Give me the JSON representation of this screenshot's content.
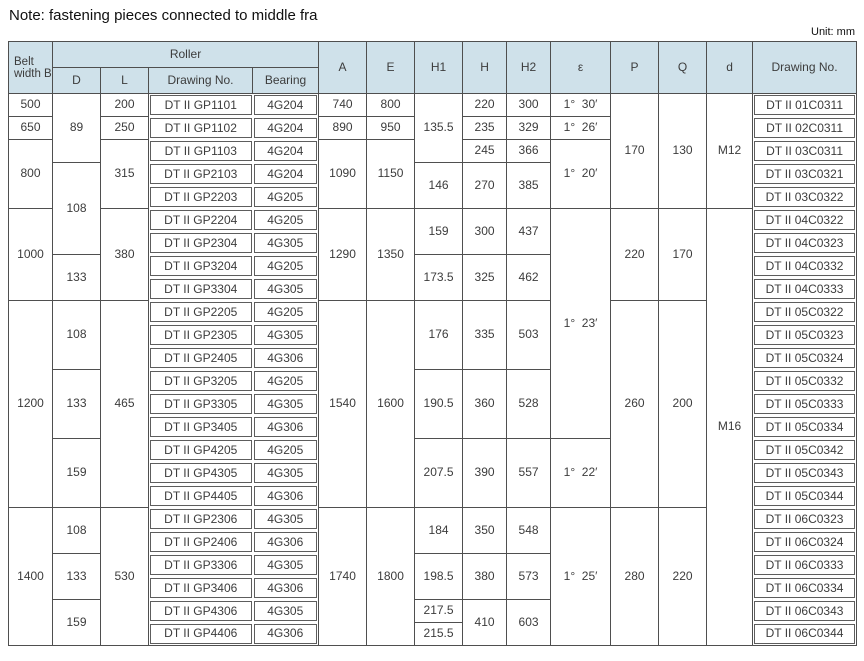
{
  "note": "Note: fastening pieces connected to middle fra",
  "unit": "Unit: mm",
  "colors": {
    "header_bg": "#cfe1ea",
    "border": "#4f4f4f",
    "box_border": "#5d5d5d",
    "text": "#3c3c3c"
  },
  "table": {
    "header": {
      "belt": "Belt width B",
      "roller": "Roller",
      "roller_sub": [
        "D",
        "L",
        "Drawing No.",
        "Bearing"
      ],
      "spanning": [
        "A",
        "E",
        "H1",
        "H",
        "H2",
        "ε",
        "P",
        "Q",
        "d",
        "Drawing No."
      ]
    },
    "rows": [
      [
        {
          "t": "500"
        },
        {
          "t": "89",
          "rs": 3
        },
        {
          "t": "200"
        },
        {
          "t": "DT II GP1101",
          "b": 1
        },
        {
          "t": "4G204",
          "b": 1
        },
        {
          "t": "740"
        },
        {
          "t": "800"
        },
        {
          "t": "135.5",
          "rs": 3
        },
        {
          "t": "220"
        },
        {
          "t": "300"
        },
        {
          "t": "1°  30′"
        },
        {
          "t": "170",
          "rs": 5
        },
        {
          "t": "130",
          "rs": 5
        },
        {
          "t": "M12",
          "rs": 5
        },
        {
          "t": "DT II 01C0311",
          "b": 1
        }
      ],
      [
        {
          "t": "650"
        },
        {
          "t": "250"
        },
        {
          "t": "DT II GP1102",
          "b": 1
        },
        {
          "t": "4G204",
          "b": 1
        },
        {
          "t": "890"
        },
        {
          "t": "950"
        },
        {
          "t": "235"
        },
        {
          "t": "329"
        },
        {
          "t": "1°  26′"
        },
        {
          "t": "DT II 02C0311",
          "b": 1
        }
      ],
      [
        {
          "t": "800",
          "rs": 3
        },
        {
          "t": "315",
          "rs": 3
        },
        {
          "t": "DT II GP1103",
          "b": 1
        },
        {
          "t": "4G204",
          "b": 1
        },
        {
          "t": "1090",
          "rs": 3
        },
        {
          "t": "1150",
          "rs": 3
        },
        {
          "t": "245"
        },
        {
          "t": "366"
        },
        {
          "t": "1°  20′",
          "rs": 3
        },
        {
          "t": "DT II 03C0311",
          "b": 1
        }
      ],
      [
        {
          "t": "108",
          "rs": 4
        },
        {
          "t": "DT II GP2103",
          "b": 1
        },
        {
          "t": "4G204",
          "b": 1
        },
        {
          "t": "146",
          "rs": 2
        },
        {
          "t": "270",
          "rs": 2
        },
        {
          "t": "385",
          "rs": 2
        },
        {
          "t": "DT II 03C0321",
          "b": 1
        }
      ],
      [
        {
          "t": "DT II GP2203",
          "b": 1
        },
        {
          "t": "4G205",
          "b": 1
        },
        {
          "t": "DT II 03C0322",
          "b": 1
        }
      ],
      [
        {
          "t": "1000",
          "rs": 4
        },
        {
          "t": "380",
          "rs": 4
        },
        {
          "t": "DT II GP2204",
          "b": 1
        },
        {
          "t": "4G205",
          "b": 1
        },
        {
          "t": "1290",
          "rs": 4
        },
        {
          "t": "1350",
          "rs": 4
        },
        {
          "t": "159",
          "rs": 2
        },
        {
          "t": "300",
          "rs": 2
        },
        {
          "t": "437",
          "rs": 2
        },
        {
          "t": "1°  23′",
          "rs": 10
        },
        {
          "t": "220",
          "rs": 4
        },
        {
          "t": "170",
          "rs": 4
        },
        {
          "t": "M16",
          "rs": 19
        },
        {
          "t": "DT II 04C0322",
          "b": 1
        }
      ],
      [
        {
          "t": "DT II GP2304",
          "b": 1
        },
        {
          "t": "4G305",
          "b": 1
        },
        {
          "t": "DT II 04C0323",
          "b": 1
        }
      ],
      [
        {
          "t": "133",
          "rs": 2
        },
        {
          "t": "DT II GP3204",
          "b": 1
        },
        {
          "t": "4G205",
          "b": 1
        },
        {
          "t": "173.5",
          "rs": 2
        },
        {
          "t": "325",
          "rs": 2
        },
        {
          "t": "462",
          "rs": 2
        },
        {
          "t": "DT II 04C0332",
          "b": 1
        }
      ],
      [
        {
          "t": "DT II GP3304",
          "b": 1
        },
        {
          "t": "4G305",
          "b": 1
        },
        {
          "t": "DT II 04C0333",
          "b": 1
        }
      ],
      [
        {
          "t": "1200",
          "rs": 9
        },
        {
          "t": "108",
          "rs": 3
        },
        {
          "t": "465",
          "rs": 9
        },
        {
          "t": "DT II GP2205",
          "b": 1
        },
        {
          "t": "4G205",
          "b": 1
        },
        {
          "t": "1540",
          "rs": 9
        },
        {
          "t": "1600",
          "rs": 9
        },
        {
          "t": "176",
          "rs": 3
        },
        {
          "t": "335",
          "rs": 3
        },
        {
          "t": "503",
          "rs": 3
        },
        {
          "t": "260",
          "rs": 9
        },
        {
          "t": "200",
          "rs": 9
        },
        {
          "t": "DT II 05C0322",
          "b": 1
        }
      ],
      [
        {
          "t": "DT II GP2305",
          "b": 1
        },
        {
          "t": "4G305",
          "b": 1
        },
        {
          "t": "DT II 05C0323",
          "b": 1
        }
      ],
      [
        {
          "t": "DT II GP2405",
          "b": 1
        },
        {
          "t": "4G306",
          "b": 1
        },
        {
          "t": "DT II 05C0324",
          "b": 1
        }
      ],
      [
        {
          "t": "133",
          "rs": 3
        },
        {
          "t": "DT II GP3205",
          "b": 1
        },
        {
          "t": "4G205",
          "b": 1
        },
        {
          "t": "190.5",
          "rs": 3
        },
        {
          "t": "360",
          "rs": 3
        },
        {
          "t": "528",
          "rs": 3
        },
        {
          "t": "DT II 05C0332",
          "b": 1
        }
      ],
      [
        {
          "t": "DT II GP3305",
          "b": 1
        },
        {
          "t": "4G305",
          "b": 1
        },
        {
          "t": "DT II 05C0333",
          "b": 1
        }
      ],
      [
        {
          "t": "DT II GP3405",
          "b": 1
        },
        {
          "t": "4G306",
          "b": 1
        },
        {
          "t": "DT II 05C0334",
          "b": 1
        }
      ],
      [
        {
          "t": "159",
          "rs": 3
        },
        {
          "t": "DT II GP4205",
          "b": 1
        },
        {
          "t": "4G205",
          "b": 1
        },
        {
          "t": "207.5",
          "rs": 3
        },
        {
          "t": "390",
          "rs": 3
        },
        {
          "t": "557",
          "rs": 3
        },
        {
          "t": "1°  22′",
          "rs": 3
        },
        {
          "t": "DT II 05C0342",
          "b": 1
        }
      ],
      [
        {
          "t": "DT II GP4305",
          "b": 1
        },
        {
          "t": "4G305",
          "b": 1
        },
        {
          "t": "DT II 05C0343",
          "b": 1
        }
      ],
      [
        {
          "t": "DT II GP4405",
          "b": 1
        },
        {
          "t": "4G306",
          "b": 1
        },
        {
          "t": "DT II 05C0344",
          "b": 1
        }
      ],
      [
        {
          "t": "1400",
          "rs": 6
        },
        {
          "t": "108",
          "rs": 2
        },
        {
          "t": "530",
          "rs": 6
        },
        {
          "t": "DT II GP2306",
          "b": 1
        },
        {
          "t": "4G305",
          "b": 1
        },
        {
          "t": "1740",
          "rs": 6
        },
        {
          "t": "1800",
          "rs": 6
        },
        {
          "t": "184",
          "rs": 2
        },
        {
          "t": "350",
          "rs": 2
        },
        {
          "t": "548",
          "rs": 2
        },
        {
          "t": "1°  25′",
          "rs": 6
        },
        {
          "t": "280",
          "rs": 6
        },
        {
          "t": "220",
          "rs": 6
        },
        {
          "t": "DT II 06C0323",
          "b": 1
        }
      ],
      [
        {
          "t": "DT II GP2406",
          "b": 1
        },
        {
          "t": "4G306",
          "b": 1
        },
        {
          "t": "DT II 06C0324",
          "b": 1
        }
      ],
      [
        {
          "t": "133",
          "rs": 2
        },
        {
          "t": "DT II GP3306",
          "b": 1
        },
        {
          "t": "4G305",
          "b": 1
        },
        {
          "t": "198.5",
          "rs": 2
        },
        {
          "t": "380",
          "rs": 2
        },
        {
          "t": "573",
          "rs": 2
        },
        {
          "t": "DT II 06C0333",
          "b": 1
        }
      ],
      [
        {
          "t": "DT II GP3406",
          "b": 1
        },
        {
          "t": "4G306",
          "b": 1
        },
        {
          "t": "DT II 06C0334",
          "b": 1
        }
      ],
      [
        {
          "t": "159",
          "rs": 2
        },
        {
          "t": "DT II GP4306",
          "b": 1
        },
        {
          "t": "4G305",
          "b": 1
        },
        {
          "t": "217.5"
        },
        {
          "t": "410",
          "rs": 2
        },
        {
          "t": "603",
          "rs": 2
        },
        {
          "t": "DT II 06C0343",
          "b": 1
        }
      ],
      [
        {
          "t": "DT II GP4406",
          "b": 1
        },
        {
          "t": "4G306",
          "b": 1
        },
        {
          "t": "215.5"
        },
        {
          "t": "DT II 06C0344",
          "b": 1
        }
      ]
    ]
  }
}
